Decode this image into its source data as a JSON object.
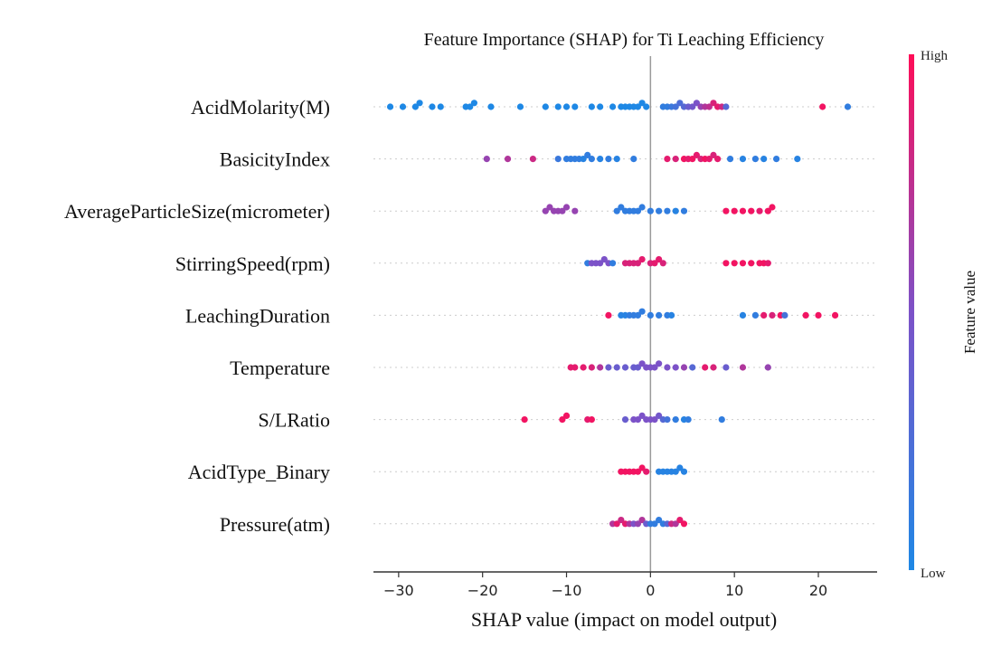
{
  "chart_data": {
    "type": "scatter",
    "subtype": "shap-beeswarm",
    "title": "Feature Importance (SHAP) for Ti Leaching Efficiency",
    "xlabel": "SHAP value (impact on model output)",
    "xlim": [
      -33,
      27
    ],
    "xticks": [
      -30,
      -20,
      -10,
      0,
      10,
      20
    ],
    "colorbar": {
      "label": "Feature value",
      "high": "High",
      "low": "Low",
      "low_color": "#1e88e5",
      "high_color": "#ff0d57"
    },
    "features": [
      {
        "name": "AcidMolarity(M)",
        "points": [
          [
            -31,
            0
          ],
          [
            -29.5,
            0
          ],
          [
            -28,
            0
          ],
          [
            -27.5,
            0
          ],
          [
            -26,
            0
          ],
          [
            -25,
            0
          ],
          [
            -22,
            0
          ],
          [
            -21.5,
            0
          ],
          [
            -21,
            0
          ],
          [
            -19,
            0
          ],
          [
            -15.5,
            0
          ],
          [
            -12.5,
            0
          ],
          [
            -11,
            0
          ],
          [
            -10,
            0
          ],
          [
            -9,
            0
          ],
          [
            -7,
            0
          ],
          [
            -6,
            0
          ],
          [
            -4.5,
            0
          ],
          [
            -3.5,
            0
          ],
          [
            -3,
            0
          ],
          [
            -2.5,
            0
          ],
          [
            -2,
            0
          ],
          [
            -1.5,
            0
          ],
          [
            -1,
            0
          ],
          [
            -0.5,
            0
          ],
          [
            1.5,
            0.1
          ],
          [
            2,
            0.1
          ],
          [
            2.5,
            0.15
          ],
          [
            3,
            0.2
          ],
          [
            3.5,
            0.25
          ],
          [
            4,
            0.3
          ],
          [
            4.5,
            0.4
          ],
          [
            5,
            0.45
          ],
          [
            5.5,
            0.5
          ],
          [
            6,
            0.6
          ],
          [
            6.5,
            0.7
          ],
          [
            7,
            0.75
          ],
          [
            7.5,
            0.85
          ],
          [
            8,
            0.9
          ],
          [
            8.5,
            0.8
          ],
          [
            9,
            0.3
          ],
          [
            20.5,
            0.95
          ],
          [
            23.5,
            0.1
          ]
        ]
      },
      {
        "name": "BasicityIndex",
        "points": [
          [
            -19.5,
            0.6
          ],
          [
            -17,
            0.7
          ],
          [
            -14,
            0.8
          ],
          [
            -11,
            0.15
          ],
          [
            -10,
            0.1
          ],
          [
            -9.5,
            0.1
          ],
          [
            -9,
            0.1
          ],
          [
            -8.5,
            0.1
          ],
          [
            -8,
            0.05
          ],
          [
            -7.5,
            0.1
          ],
          [
            -7,
            0.1
          ],
          [
            -6,
            0.05
          ],
          [
            -5,
            0.1
          ],
          [
            -4,
            0.05
          ],
          [
            -2,
            0.1
          ],
          [
            2,
            0.9
          ],
          [
            3,
            0.85
          ],
          [
            4,
            0.95
          ],
          [
            4.5,
            0.9
          ],
          [
            5,
            0.95
          ],
          [
            5.5,
            0.9
          ],
          [
            6,
            0.85
          ],
          [
            6.5,
            0.95
          ],
          [
            7,
            0.9
          ],
          [
            7.5,
            0.85
          ],
          [
            8,
            0.9
          ],
          [
            9.5,
            0.1
          ],
          [
            11,
            0.05
          ],
          [
            12.5,
            0.1
          ],
          [
            13.5,
            0.05
          ],
          [
            15,
            0.1
          ],
          [
            17.5,
            0.05
          ]
        ]
      },
      {
        "name": "AverageParticleSize(micrometer)",
        "points": [
          [
            -12.5,
            0.6
          ],
          [
            -12,
            0.6
          ],
          [
            -11.5,
            0.6
          ],
          [
            -11,
            0.6
          ],
          [
            -10.5,
            0.6
          ],
          [
            -10,
            0.6
          ],
          [
            -9,
            0.6
          ],
          [
            -4,
            0.1
          ],
          [
            -3.5,
            0.1
          ],
          [
            -3,
            0.1
          ],
          [
            -2.5,
            0.1
          ],
          [
            -2,
            0.1
          ],
          [
            -1.5,
            0.1
          ],
          [
            -1,
            0.1
          ],
          [
            0,
            0.1
          ],
          [
            1,
            0.1
          ],
          [
            2,
            0.1
          ],
          [
            3,
            0.05
          ],
          [
            4,
            0.1
          ],
          [
            9,
            0.95
          ],
          [
            10,
            0.95
          ],
          [
            11,
            0.95
          ],
          [
            12,
            0.95
          ],
          [
            13,
            0.9
          ],
          [
            14,
            0.95
          ],
          [
            14.5,
            0.95
          ]
        ]
      },
      {
        "name": "StirringSpeed(rpm)",
        "points": [
          [
            -7.5,
            0.1
          ],
          [
            -7,
            0.5
          ],
          [
            -6.5,
            0.5
          ],
          [
            -6,
            0.5
          ],
          [
            -5.5,
            0.5
          ],
          [
            -5,
            0.5
          ],
          [
            -4.5,
            0.1
          ],
          [
            -3,
            0.85
          ],
          [
            -2.5,
            0.85
          ],
          [
            -2,
            0.85
          ],
          [
            -1.5,
            0.85
          ],
          [
            -1,
            0.9
          ],
          [
            0,
            0.85
          ],
          [
            0.5,
            0.9
          ],
          [
            1,
            0.9
          ],
          [
            1.5,
            0.85
          ],
          [
            9,
            0.95
          ],
          [
            10,
            0.95
          ],
          [
            11,
            0.95
          ],
          [
            12,
            0.95
          ],
          [
            13,
            0.95
          ],
          [
            13.5,
            0.95
          ],
          [
            14,
            0.9
          ]
        ]
      },
      {
        "name": "LeachingDuration",
        "points": [
          [
            -5,
            0.95
          ],
          [
            -3.5,
            0.05
          ],
          [
            -3,
            0.05
          ],
          [
            -2.5,
            0.1
          ],
          [
            -2,
            0.1
          ],
          [
            -1.5,
            0.1
          ],
          [
            -1,
            0.1
          ],
          [
            0,
            0.1
          ],
          [
            1,
            0.1
          ],
          [
            2,
            0.1
          ],
          [
            2.5,
            0.05
          ],
          [
            11,
            0.05
          ],
          [
            12.5,
            0.1
          ],
          [
            13.5,
            0.9
          ],
          [
            14.5,
            0.85
          ],
          [
            15.5,
            0.95
          ],
          [
            16,
            0.2
          ],
          [
            18.5,
            0.95
          ],
          [
            20,
            0.95
          ],
          [
            22,
            0.95
          ]
        ]
      },
      {
        "name": "Temperature",
        "points": [
          [
            -9.5,
            0.9
          ],
          [
            -9,
            0.9
          ],
          [
            -8,
            0.9
          ],
          [
            -7,
            0.85
          ],
          [
            -6,
            0.7
          ],
          [
            -5,
            0.4
          ],
          [
            -4,
            0.4
          ],
          [
            -3,
            0.4
          ],
          [
            -2,
            0.4
          ],
          [
            -1.5,
            0.4
          ],
          [
            -1,
            0.5
          ],
          [
            -0.5,
            0.5
          ],
          [
            0,
            0.5
          ],
          [
            0.5,
            0.5
          ],
          [
            1,
            0.5
          ],
          [
            2,
            0.5
          ],
          [
            3,
            0.5
          ],
          [
            4,
            0.6
          ],
          [
            5,
            0.3
          ],
          [
            6.5,
            0.9
          ],
          [
            7.5,
            0.85
          ],
          [
            9,
            0.4
          ],
          [
            11,
            0.7
          ],
          [
            14,
            0.6
          ]
        ]
      },
      {
        "name": "S/LRatio",
        "points": [
          [
            -15,
            0.95
          ],
          [
            -10.5,
            0.95
          ],
          [
            -10,
            0.95
          ],
          [
            -7.5,
            0.9
          ],
          [
            -7,
            0.95
          ],
          [
            -3,
            0.4
          ],
          [
            -2,
            0.5
          ],
          [
            -1.5,
            0.5
          ],
          [
            -1,
            0.5
          ],
          [
            -0.5,
            0.5
          ],
          [
            0,
            0.5
          ],
          [
            0.5,
            0.5
          ],
          [
            1,
            0.45
          ],
          [
            1.5,
            0.3
          ],
          [
            2,
            0.2
          ],
          [
            3,
            0.1
          ],
          [
            4,
            0.05
          ],
          [
            4.5,
            0.1
          ],
          [
            8.5,
            0.1
          ]
        ]
      },
      {
        "name": "AcidType_Binary",
        "points": [
          [
            -3.5,
            0.95
          ],
          [
            -3,
            0.95
          ],
          [
            -2.5,
            0.95
          ],
          [
            -2,
            0.95
          ],
          [
            -1.5,
            0.95
          ],
          [
            -1,
            0.95
          ],
          [
            -0.5,
            0.9
          ],
          [
            1,
            0.05
          ],
          [
            1.5,
            0.05
          ],
          [
            2,
            0.05
          ],
          [
            2.5,
            0.05
          ],
          [
            3,
            0.05
          ],
          [
            3.5,
            0.05
          ],
          [
            4,
            0.05
          ]
        ]
      },
      {
        "name": "Pressure(atm)",
        "points": [
          [
            -4.5,
            0.7
          ],
          [
            -4,
            0.9
          ],
          [
            -3.5,
            0.8
          ],
          [
            -3,
            0.9
          ],
          [
            -2.5,
            0.7
          ],
          [
            -2,
            0.5
          ],
          [
            -1.5,
            0.6
          ],
          [
            -1,
            0.7
          ],
          [
            -0.5,
            0.4
          ],
          [
            0,
            0.1
          ],
          [
            0.5,
            0.1
          ],
          [
            1,
            0.1
          ],
          [
            1.5,
            0.1
          ],
          [
            2,
            0.3
          ],
          [
            2.5,
            0.8
          ],
          [
            3,
            0.7
          ],
          [
            3.5,
            0.9
          ],
          [
            4,
            0.95
          ]
        ]
      }
    ]
  }
}
